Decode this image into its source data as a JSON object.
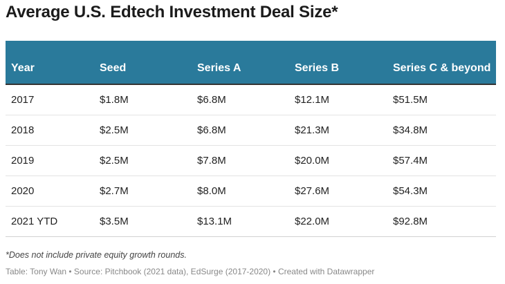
{
  "title": "Average U.S. Edtech Investment Deal Size*",
  "chart_data": {
    "type": "table",
    "title": "Average U.S. Edtech Investment Deal Size*",
    "columns": [
      "Year",
      "Seed",
      "Series A",
      "Series B",
      "Series C & beyond"
    ],
    "rows": [
      [
        "2017",
        "$1.8M",
        "$6.8M",
        "$12.1M",
        "$51.5M"
      ],
      [
        "2018",
        "$2.5M",
        "$6.8M",
        "$21.3M",
        "$34.8M"
      ],
      [
        "2019",
        "$2.5M",
        "$7.8M",
        "$20.0M",
        "$57.4M"
      ],
      [
        "2020",
        "$2.7M",
        "$8.0M",
        "$27.6M",
        "$54.3M"
      ],
      [
        "2021 YTD",
        "$3.5M",
        "$13.1M",
        "$22.0M",
        "$92.8M"
      ]
    ]
  },
  "note": "*Does not include private equity growth rounds.",
  "footer": "Table: Tony Wan • Source: Pitchbook (2021 data), EdSurge (2017-2020) • Created with Datawrapper",
  "colors": {
    "header_bg": "#2a7a9b",
    "header_text": "#ffffff"
  }
}
